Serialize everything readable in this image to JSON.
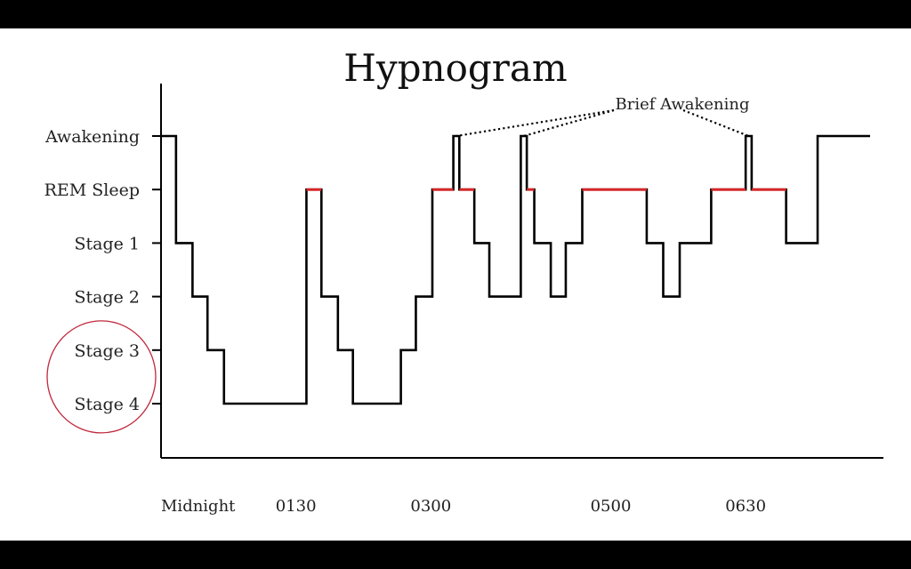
{
  "chart_data": {
    "type": "line",
    "title": "Hypnogram",
    "stage_levels": [
      "Awakening",
      "REM Sleep",
      "Stage 1",
      "Stage 2",
      "Stage 3",
      "Stage 4"
    ],
    "x_ticks": [
      {
        "label": "Midnight",
        "t": 0
      },
      {
        "label": "0130",
        "t": 90
      },
      {
        "label": "0300",
        "t": 180
      },
      {
        "label": "0500",
        "t": 300
      },
      {
        "label": "0630",
        "t": 390
      }
    ],
    "xlim": [
      0,
      468
    ],
    "hypnogram": [
      {
        "start": 0,
        "end": 10,
        "stage": "Awakening"
      },
      {
        "start": 10,
        "end": 21,
        "stage": "Stage 1"
      },
      {
        "start": 21,
        "end": 31,
        "stage": "Stage 2"
      },
      {
        "start": 31,
        "end": 42,
        "stage": "Stage 3"
      },
      {
        "start": 42,
        "end": 97,
        "stage": "Stage 4"
      },
      {
        "start": 97,
        "end": 107,
        "stage": "REM Sleep"
      },
      {
        "start": 107,
        "end": 118,
        "stage": "Stage 2"
      },
      {
        "start": 118,
        "end": 128,
        "stage": "Stage 3"
      },
      {
        "start": 128,
        "end": 160,
        "stage": "Stage 4"
      },
      {
        "start": 160,
        "end": 170,
        "stage": "Stage 3"
      },
      {
        "start": 170,
        "end": 181,
        "stage": "Stage 2"
      },
      {
        "start": 181,
        "end": 195,
        "stage": "REM Sleep"
      },
      {
        "start": 195,
        "end": 199,
        "stage": "Awakening"
      },
      {
        "start": 199,
        "end": 209,
        "stage": "REM Sleep"
      },
      {
        "start": 209,
        "end": 219,
        "stage": "Stage 1"
      },
      {
        "start": 219,
        "end": 240,
        "stage": "Stage 2"
      },
      {
        "start": 240,
        "end": 244,
        "stage": "Awakening"
      },
      {
        "start": 244,
        "end": 249,
        "stage": "REM Sleep"
      },
      {
        "start": 249,
        "end": 260,
        "stage": "Stage 1"
      },
      {
        "start": 260,
        "end": 270,
        "stage": "Stage 2"
      },
      {
        "start": 270,
        "end": 281,
        "stage": "Stage 1"
      },
      {
        "start": 281,
        "end": 324,
        "stage": "REM Sleep"
      },
      {
        "start": 324,
        "end": 335,
        "stage": "Stage 1"
      },
      {
        "start": 335,
        "end": 346,
        "stage": "Stage 2"
      },
      {
        "start": 346,
        "end": 367,
        "stage": "Stage 1"
      },
      {
        "start": 367,
        "end": 390,
        "stage": "REM Sleep"
      },
      {
        "start": 390,
        "end": 394,
        "stage": "Awakening"
      },
      {
        "start": 394,
        "end": 417,
        "stage": "REM Sleep"
      },
      {
        "start": 417,
        "end": 438,
        "stage": "Stage 1"
      },
      {
        "start": 438,
        "end": 473,
        "stage": "Awakening"
      }
    ],
    "annotation": {
      "text": "Brief Awakening",
      "targets_t": [
        197,
        242,
        392
      ]
    },
    "highlight_circle_around": [
      "Stage 3",
      "Stage 4"
    ],
    "colors": {
      "line": "#000000",
      "rem": "#d62728",
      "rem_label": "#c0283c",
      "circle": "#c0283c"
    }
  }
}
